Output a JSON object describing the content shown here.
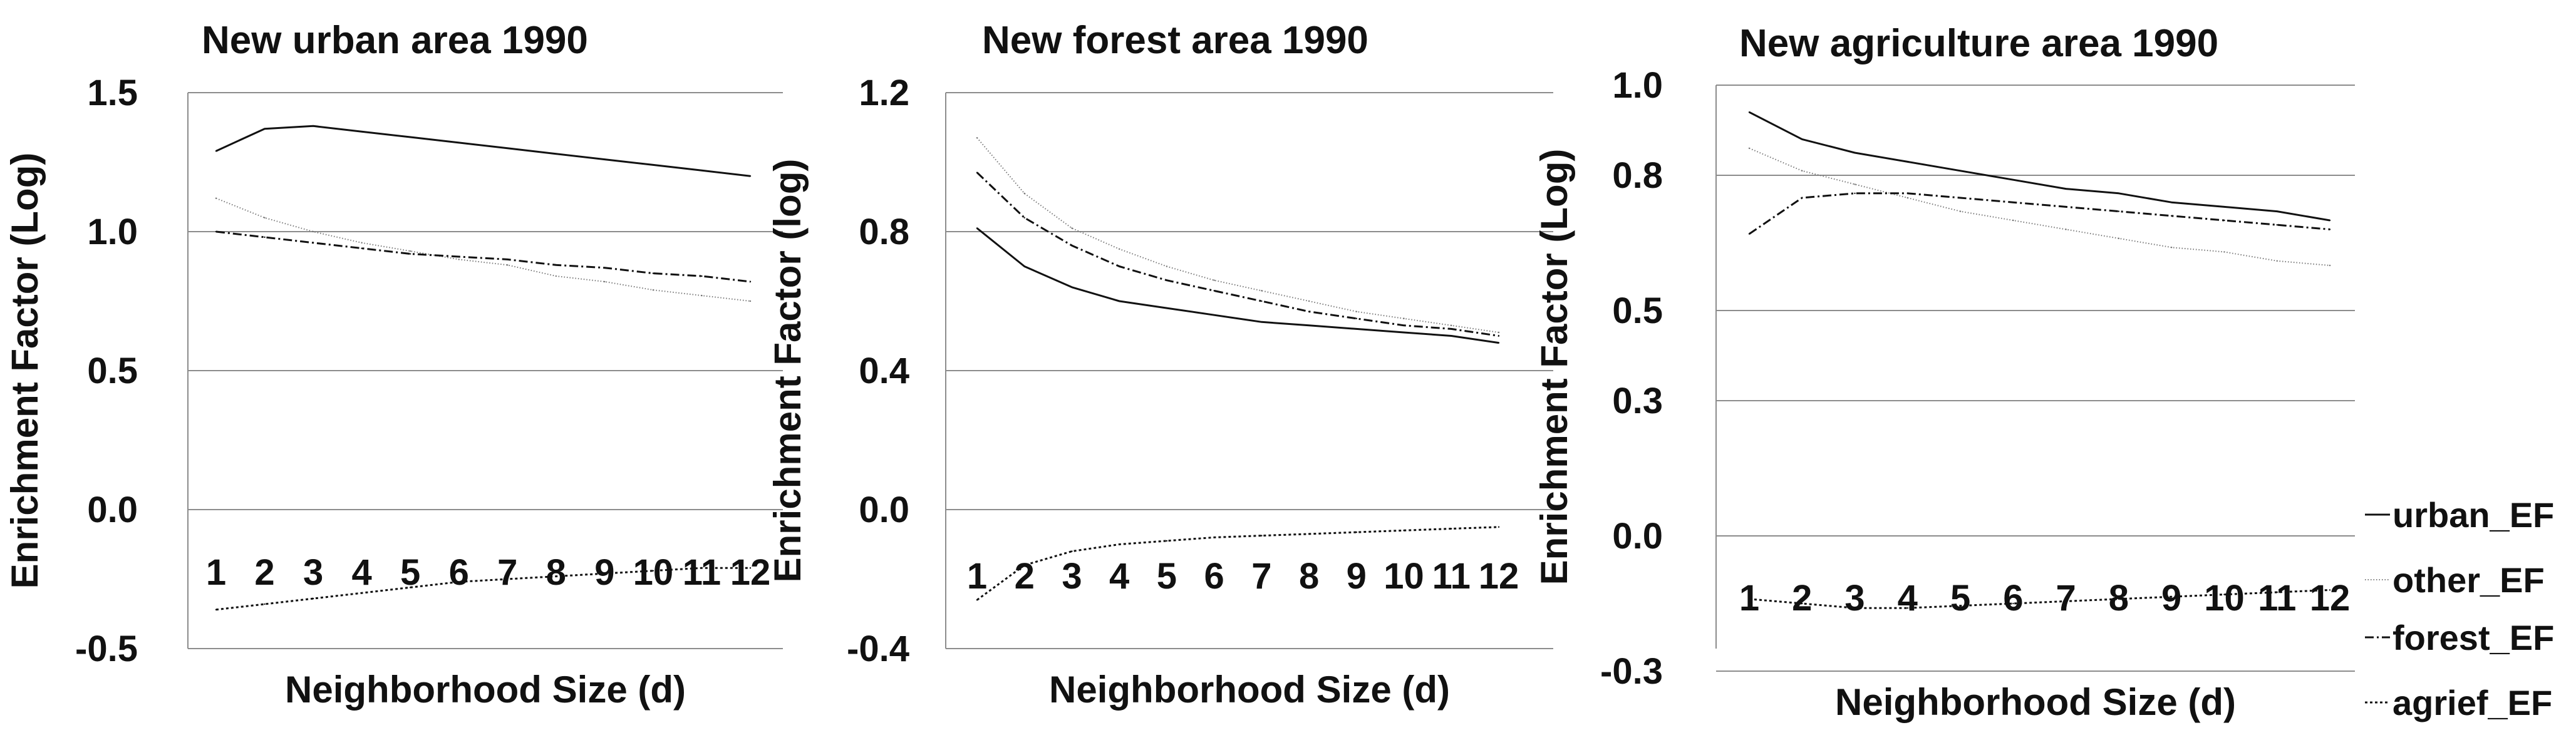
{
  "chart_data": [
    {
      "type": "line",
      "title": "New urban area 1990",
      "xlabel": "Neighborhood Size (d)",
      "ylabel": "Enrichment Factor (Log)",
      "x": [
        1,
        2,
        3,
        4,
        5,
        6,
        7,
        8,
        9,
        10,
        11,
        12
      ],
      "ylim": [
        -0.5,
        1.5
      ],
      "yticks": [
        "-0.5",
        "0.0",
        "0.5",
        "1.0",
        "1.5"
      ],
      "grid": true,
      "series": [
        {
          "name": "urban_EF",
          "values": [
            1.29,
            1.37,
            1.38,
            1.36,
            1.34,
            1.32,
            1.3,
            1.28,
            1.26,
            1.24,
            1.22,
            1.2
          ]
        },
        {
          "name": "other_EF",
          "values": [
            1.12,
            1.05,
            1.0,
            0.96,
            0.93,
            0.9,
            0.88,
            0.84,
            0.82,
            0.79,
            0.77,
            0.75
          ]
        },
        {
          "name": "forest_EF",
          "values": [
            1.0,
            0.98,
            0.96,
            0.94,
            0.92,
            0.91,
            0.9,
            0.88,
            0.87,
            0.85,
            0.84,
            0.82
          ]
        },
        {
          "name": "agrief_EF",
          "values": [
            -0.36,
            -0.34,
            -0.32,
            -0.3,
            -0.28,
            -0.26,
            -0.25,
            -0.24,
            -0.23,
            -0.22,
            -0.21,
            -0.21
          ]
        }
      ]
    },
    {
      "type": "line",
      "title": "New forest area 1990",
      "xlabel": "Neighborhood Size (d)",
      "ylabel": "Enrichment Factor (log)",
      "x": [
        1,
        2,
        3,
        4,
        5,
        6,
        7,
        8,
        9,
        10,
        11,
        12
      ],
      "ylim": [
        -0.4,
        1.2
      ],
      "yticks": [
        "-0.4",
        "0.0",
        "0.4",
        "0.8",
        "1.2"
      ],
      "grid": true,
      "series": [
        {
          "name": "urban_EF",
          "values": [
            0.81,
            0.7,
            0.64,
            0.6,
            0.58,
            0.56,
            0.54,
            0.53,
            0.52,
            0.51,
            0.5,
            0.48
          ]
        },
        {
          "name": "other_EF",
          "values": [
            1.07,
            0.91,
            0.81,
            0.75,
            0.7,
            0.66,
            0.63,
            0.6,
            0.57,
            0.55,
            0.53,
            0.51
          ]
        },
        {
          "name": "forest_EF",
          "values": [
            0.97,
            0.84,
            0.76,
            0.7,
            0.66,
            0.63,
            0.6,
            0.57,
            0.55,
            0.53,
            0.52,
            0.5
          ]
        },
        {
          "name": "agrief_EF",
          "values": [
            -0.26,
            -0.16,
            -0.12,
            -0.1,
            -0.09,
            -0.08,
            -0.075,
            -0.07,
            -0.065,
            -0.06,
            -0.055,
            -0.05
          ]
        }
      ]
    },
    {
      "type": "line",
      "title": "New agriculture area 1990",
      "xlabel": "Neighborhood Size (d)",
      "ylabel": "Enrichment Factor (Log)",
      "x": [
        1,
        2,
        3,
        4,
        5,
        6,
        7,
        8,
        9,
        10,
        11,
        12
      ],
      "ylim": [
        -0.25,
        1.0
      ],
      "yticks": [
        "-0.3",
        "0.0",
        "0.3",
        "0.5",
        "0.8",
        "1.0"
      ],
      "grid": true,
      "series": [
        {
          "name": "urban_EF",
          "values": [
            0.94,
            0.88,
            0.85,
            0.83,
            0.81,
            0.79,
            0.77,
            0.76,
            0.74,
            0.73,
            0.72,
            0.7
          ]
        },
        {
          "name": "other_EF",
          "values": [
            0.86,
            0.81,
            0.78,
            0.75,
            0.72,
            0.7,
            0.68,
            0.66,
            0.64,
            0.63,
            0.61,
            0.6
          ]
        },
        {
          "name": "forest_EF",
          "values": [
            0.67,
            0.75,
            0.76,
            0.76,
            0.75,
            0.74,
            0.73,
            0.72,
            0.71,
            0.7,
            0.69,
            0.68
          ]
        },
        {
          "name": "agrief_EF",
          "values": [
            -0.14,
            -0.15,
            -0.16,
            -0.16,
            -0.155,
            -0.15,
            -0.145,
            -0.14,
            -0.135,
            -0.13,
            -0.125,
            -0.12
          ]
        }
      ]
    }
  ],
  "legend": {
    "placement": "right",
    "items": [
      "urban_EF",
      "other_EF",
      "forest_EF",
      "agrief_EF"
    ]
  }
}
